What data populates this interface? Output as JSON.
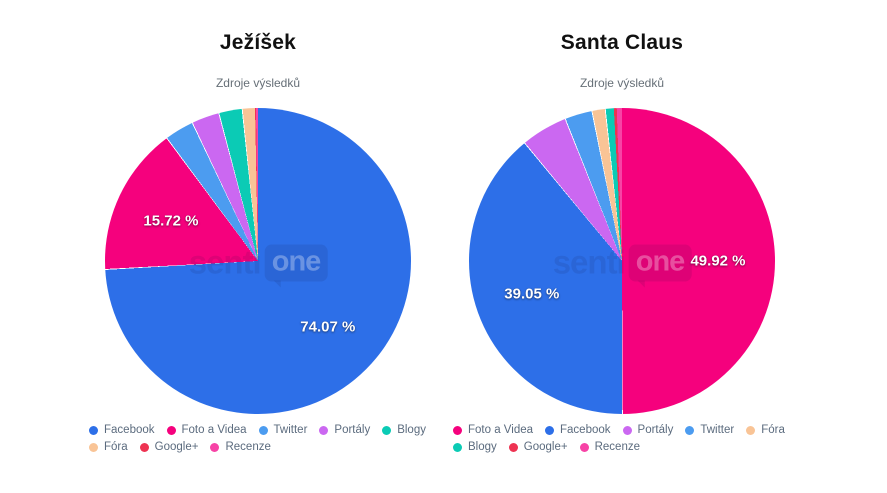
{
  "watermark": {
    "part1": "senti",
    "part2": "one"
  },
  "chart_data": [
    {
      "type": "pie",
      "title": "Ježíšek",
      "subtitle": "Zdroje výsledků",
      "legend_position": "bottom",
      "series": [
        {
          "label": "Facebook",
          "value": 74.07,
          "color": "#2D6FE8",
          "data_label": "74.07 %"
        },
        {
          "label": "Foto a Videa",
          "value": 15.72,
          "color": "#F5017D",
          "data_label": "15.72 %"
        },
        {
          "label": "Twitter",
          "value": 3.1,
          "color": "#4C9CF0"
        },
        {
          "label": "Portály",
          "value": 2.94,
          "color": "#CB68F1"
        },
        {
          "label": "Blogy",
          "value": 2.47,
          "color": "#0BCBB5"
        },
        {
          "label": "Fóra",
          "value": 1.39,
          "color": "#F9C496"
        },
        {
          "label": "Google+",
          "value": 0.1,
          "color": "#EE3352"
        },
        {
          "label": "Recenze",
          "value": 0.21,
          "color": "#F743A6"
        }
      ]
    },
    {
      "type": "pie",
      "title": "Santa Claus",
      "subtitle": "Zdroje výsledků",
      "legend_position": "bottom",
      "series": [
        {
          "label": "Foto a Videa",
          "value": 49.92,
          "color": "#F5017D",
          "data_label": "49.92 %"
        },
        {
          "label": "Facebook",
          "value": 39.05,
          "color": "#2D6FE8",
          "data_label": "39.05 %"
        },
        {
          "label": "Portály",
          "value": 4.93,
          "color": "#CB68F1"
        },
        {
          "label": "Twitter",
          "value": 2.9,
          "color": "#4C9CF0"
        },
        {
          "label": "Fóra",
          "value": 1.4,
          "color": "#F9C496"
        },
        {
          "label": "Blogy",
          "value": 0.95,
          "color": "#0BCBB5"
        },
        {
          "label": "Google+",
          "value": 0.3,
          "color": "#EE3352"
        },
        {
          "label": "Recenze",
          "value": 0.55,
          "color": "#F743A6"
        }
      ]
    }
  ]
}
